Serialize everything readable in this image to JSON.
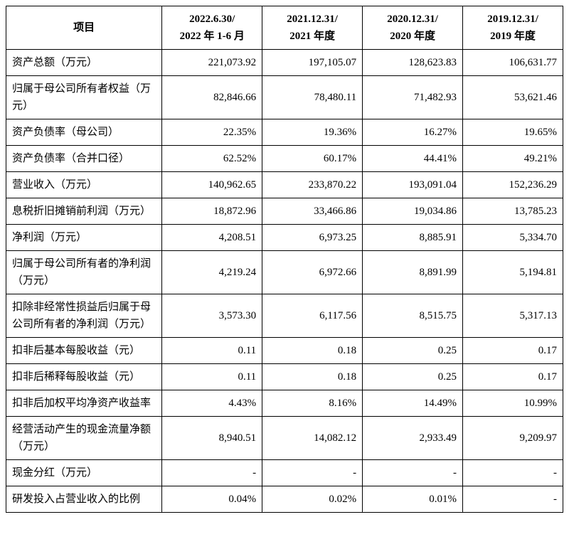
{
  "table": {
    "type": "table",
    "background_color": "#ffffff",
    "border_color": "#000000",
    "font_family": "SimSun",
    "header_fontsize": 15,
    "cell_fontsize": 15,
    "columns": {
      "label": "项目",
      "periods": [
        "2022.6.30/\n2022 年 1-6 月",
        "2021.12.31/\n2021 年度",
        "2020.12.31/\n2020 年度",
        "2019.12.31/\n2019 年度"
      ]
    },
    "rows": [
      {
        "label": "资产总额（万元）",
        "values": [
          "221,073.92",
          "197,105.07",
          "128,623.83",
          "106,631.77"
        ]
      },
      {
        "label": "归属于母公司所有者权益（万元）",
        "values": [
          "82,846.66",
          "78,480.11",
          "71,482.93",
          "53,621.46"
        ]
      },
      {
        "label": "资产负债率（母公司）",
        "values": [
          "22.35%",
          "19.36%",
          "16.27%",
          "19.65%"
        ]
      },
      {
        "label": "资产负债率（合并口径）",
        "values": [
          "62.52%",
          "60.17%",
          "44.41%",
          "49.21%"
        ]
      },
      {
        "label": "营业收入（万元）",
        "values": [
          "140,962.65",
          "233,870.22",
          "193,091.04",
          "152,236.29"
        ]
      },
      {
        "label": "息税折旧摊销前利润（万元）",
        "values": [
          "18,872.96",
          "33,466.86",
          "19,034.86",
          "13,785.23"
        ]
      },
      {
        "label": "净利润（万元）",
        "values": [
          "4,208.51",
          "6,973.25",
          "8,885.91",
          "5,334.70"
        ]
      },
      {
        "label": "归属于母公司所有者的净利润（万元）",
        "values": [
          "4,219.24",
          "6,972.66",
          "8,891.99",
          "5,194.81"
        ]
      },
      {
        "label": "扣除非经常性损益后归属于母公司所有者的净利润（万元）",
        "values": [
          "3,573.30",
          "6,117.56",
          "8,515.75",
          "5,317.13"
        ]
      },
      {
        "label": "扣非后基本每股收益（元）",
        "values": [
          "0.11",
          "0.18",
          "0.25",
          "0.17"
        ]
      },
      {
        "label": "扣非后稀释每股收益（元）",
        "values": [
          "0.11",
          "0.18",
          "0.25",
          "0.17"
        ]
      },
      {
        "label": "扣非后加权平均净资产收益率",
        "values": [
          "4.43%",
          "8.16%",
          "14.49%",
          "10.99%"
        ]
      },
      {
        "label": "经营活动产生的现金流量净额（万元）",
        "values": [
          "8,940.51",
          "14,082.12",
          "2,933.49",
          "9,209.97"
        ]
      },
      {
        "label": "现金分红（万元）",
        "values": [
          "-",
          "-",
          "-",
          "-"
        ]
      },
      {
        "label": "研发投入占营业收入的比例",
        "values": [
          "0.04%",
          "0.02%",
          "0.01%",
          "-"
        ]
      }
    ]
  }
}
